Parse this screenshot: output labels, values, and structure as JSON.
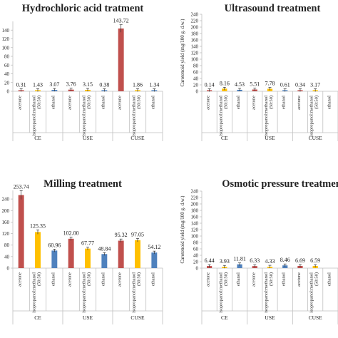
{
  "chart_data": [
    {
      "type": "bar",
      "title": "Hydrochloric acid tratment",
      "ylabel": "",
      "yticks": [
        0,
        20,
        40,
        60,
        80,
        100,
        120,
        140
      ],
      "ylim": [
        0,
        160
      ],
      "categories": [
        "acetone",
        "isopropanol:methanol (50:50)",
        "ethanol",
        "acetone",
        "isopropanol:methanol (50:50)",
        "ethanol",
        "acetone",
        "isopropanol:methanol (50:50)",
        "ethanol"
      ],
      "groups": [
        "CE",
        "USE",
        "CUSE"
      ],
      "values": [
        0.31,
        1.43,
        3.07,
        3.76,
        3.15,
        0.38,
        143.72,
        1.86,
        1.34
      ],
      "labels": [
        "0.31",
        "1.43",
        "3.07",
        "3.76",
        "3.15",
        "0.38",
        "143.72",
        "1.86",
        "1.34"
      ],
      "colors": [
        "#c0504d",
        "#ffc000",
        "#4f81bd",
        "#c0504d",
        "#ffc000",
        "#4f81bd",
        "#c0504d",
        "#ffc000",
        "#4f81bd"
      ]
    },
    {
      "type": "bar",
      "title": "Ultrasound treatment",
      "ylabel": "Carotenoid yield (mg/100 g. d.w.)",
      "yticks": [
        0,
        20,
        40,
        60,
        80,
        100,
        120,
        140,
        160,
        180,
        200,
        220,
        240
      ],
      "ylim": [
        0,
        240
      ],
      "categories": [
        "acetone",
        "isopropanol:methanol (50:50)",
        "ethanol",
        "acetone",
        "isopropanol:methanol (50:50)",
        "ethanol",
        "acetone",
        "isopropanol:methanol (50:50)",
        "ethanol"
      ],
      "groups": [
        "CE",
        "USE",
        "CUSE"
      ],
      "values": [
        0.14,
        8.16,
        4.53,
        5.51,
        7.78,
        0.61,
        0.34,
        3.17,
        0
      ],
      "labels": [
        "0.14",
        "8.16",
        "4.53",
        "5.51",
        "7.78",
        "0.61",
        "0.34",
        "3.17",
        ""
      ],
      "colors": [
        "#c0504d",
        "#ffc000",
        "#4f81bd",
        "#c0504d",
        "#ffc000",
        "#4f81bd",
        "#c0504d",
        "#ffc000",
        "#4f81bd"
      ]
    },
    {
      "type": "bar",
      "title": "Milling treatment",
      "ylabel": "",
      "yticks": [
        0,
        40,
        80,
        120,
        160,
        200,
        240
      ],
      "ylim": [
        0,
        270
      ],
      "categories": [
        "acetone",
        "isopropanol:methanol (50:50)",
        "ethanol",
        "acetone",
        "isopropanol:methanol (50:50)",
        "ethanol",
        "acetone",
        "isopropanol:methanol (50:50)",
        "ethanol"
      ],
      "groups": [
        "CE",
        "USE",
        "CUSE"
      ],
      "values": [
        253.74,
        125.35,
        60.96,
        102.0,
        67.77,
        48.84,
        95.32,
        97.05,
        54.12
      ],
      "labels": [
        "253.74",
        "125.35",
        "60.96",
        "102.00",
        "67.77",
        "48.84",
        "95.32",
        "97.05",
        "54.12"
      ],
      "colors": [
        "#c0504d",
        "#ffc000",
        "#4f81bd",
        "#c0504d",
        "#ffc000",
        "#4f81bd",
        "#c0504d",
        "#ffc000",
        "#4f81bd"
      ]
    },
    {
      "type": "bar",
      "title": "Osmotic pressure treatmen",
      "ylabel": "Carotenoid yield (mg/100 g. d.w.)",
      "yticks": [
        0,
        20,
        40,
        60,
        80,
        100,
        120,
        140,
        160,
        180,
        200,
        220,
        240
      ],
      "ylim": [
        0,
        240
      ],
      "categories": [
        "acetone",
        "isopropanol:methanol (50:50)",
        "ethanol",
        "acetone",
        "isopropanol:methanol (50:50)",
        "ethanol",
        "acetone",
        "isopropanol:methanol (50:50)",
        "ethanol"
      ],
      "groups": [
        "CE",
        "USE",
        "CUSE"
      ],
      "values": [
        6.44,
        3.93,
        11.81,
        6.33,
        4.33,
        8.46,
        6.69,
        6.59,
        0
      ],
      "labels": [
        "6.44",
        "3.93",
        "11.81",
        "6.33",
        "4.33",
        "8.46",
        "6.69",
        "6.59",
        ""
      ],
      "colors": [
        "#c0504d",
        "#ffc000",
        "#4f81bd",
        "#c0504d",
        "#ffc000",
        "#4f81bd",
        "#c0504d",
        "#ffc000",
        "#4f81bd"
      ]
    }
  ]
}
